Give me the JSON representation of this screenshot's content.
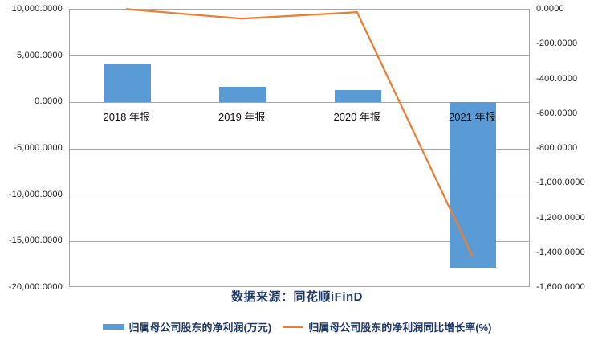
{
  "chart_data": {
    "type": "bar",
    "subtype": "bar-line-combo",
    "categories": [
      "2018 年报",
      "2019 年报",
      "2020 年报",
      "2021 年报"
    ],
    "series": [
      {
        "name": "归属母公司股东的净利润(万元)",
        "type": "bar",
        "axis": "left",
        "color": "#5b9bd5",
        "values": [
          4100,
          1670,
          1350,
          -17860
        ]
      },
      {
        "name": "归属母公司股东的净利润同比增长率(%)",
        "type": "line",
        "axis": "right",
        "color": "#ed7d31",
        "values": [
          -2,
          -57,
          -19,
          -1420
        ]
      }
    ],
    "left_axis": {
      "min": -20000,
      "max": 10000,
      "tick_values": [
        10000,
        5000,
        0,
        -5000,
        -10000,
        -15000,
        -20000
      ],
      "tick_labels": [
        "10,000.0000",
        "5,000.0000",
        "0.0000",
        "-5,000.0000",
        "-10,000.0000",
        "-15,000.0000",
        "-20,000.0000"
      ]
    },
    "right_axis": {
      "min": -1600,
      "max": 0,
      "tick_values": [
        0,
        -200,
        -400,
        -600,
        -800,
        -1000,
        -1200,
        -1400,
        -1600
      ],
      "tick_labels": [
        "0.0000",
        "-200.0000",
        "-400.0000",
        "-600.0000",
        "-800.0000",
        "-1,000.0000",
        "-1,200.0000",
        "-1,400.0000",
        "-1,600.0000"
      ]
    },
    "grid": "horizontal-on-left-ticks",
    "legend_position": "bottom",
    "title": "",
    "source_note": "数据来源：同花顺iFinD"
  },
  "colors": {
    "bar_fill": "#5b9bd5",
    "line_stroke": "#ed7d31",
    "grid_and_border": "#a6a6a6",
    "axis_text": "#202020",
    "category_text": "#111111",
    "note_and_legend_text": "#1f3864",
    "background": "#ffffff"
  }
}
